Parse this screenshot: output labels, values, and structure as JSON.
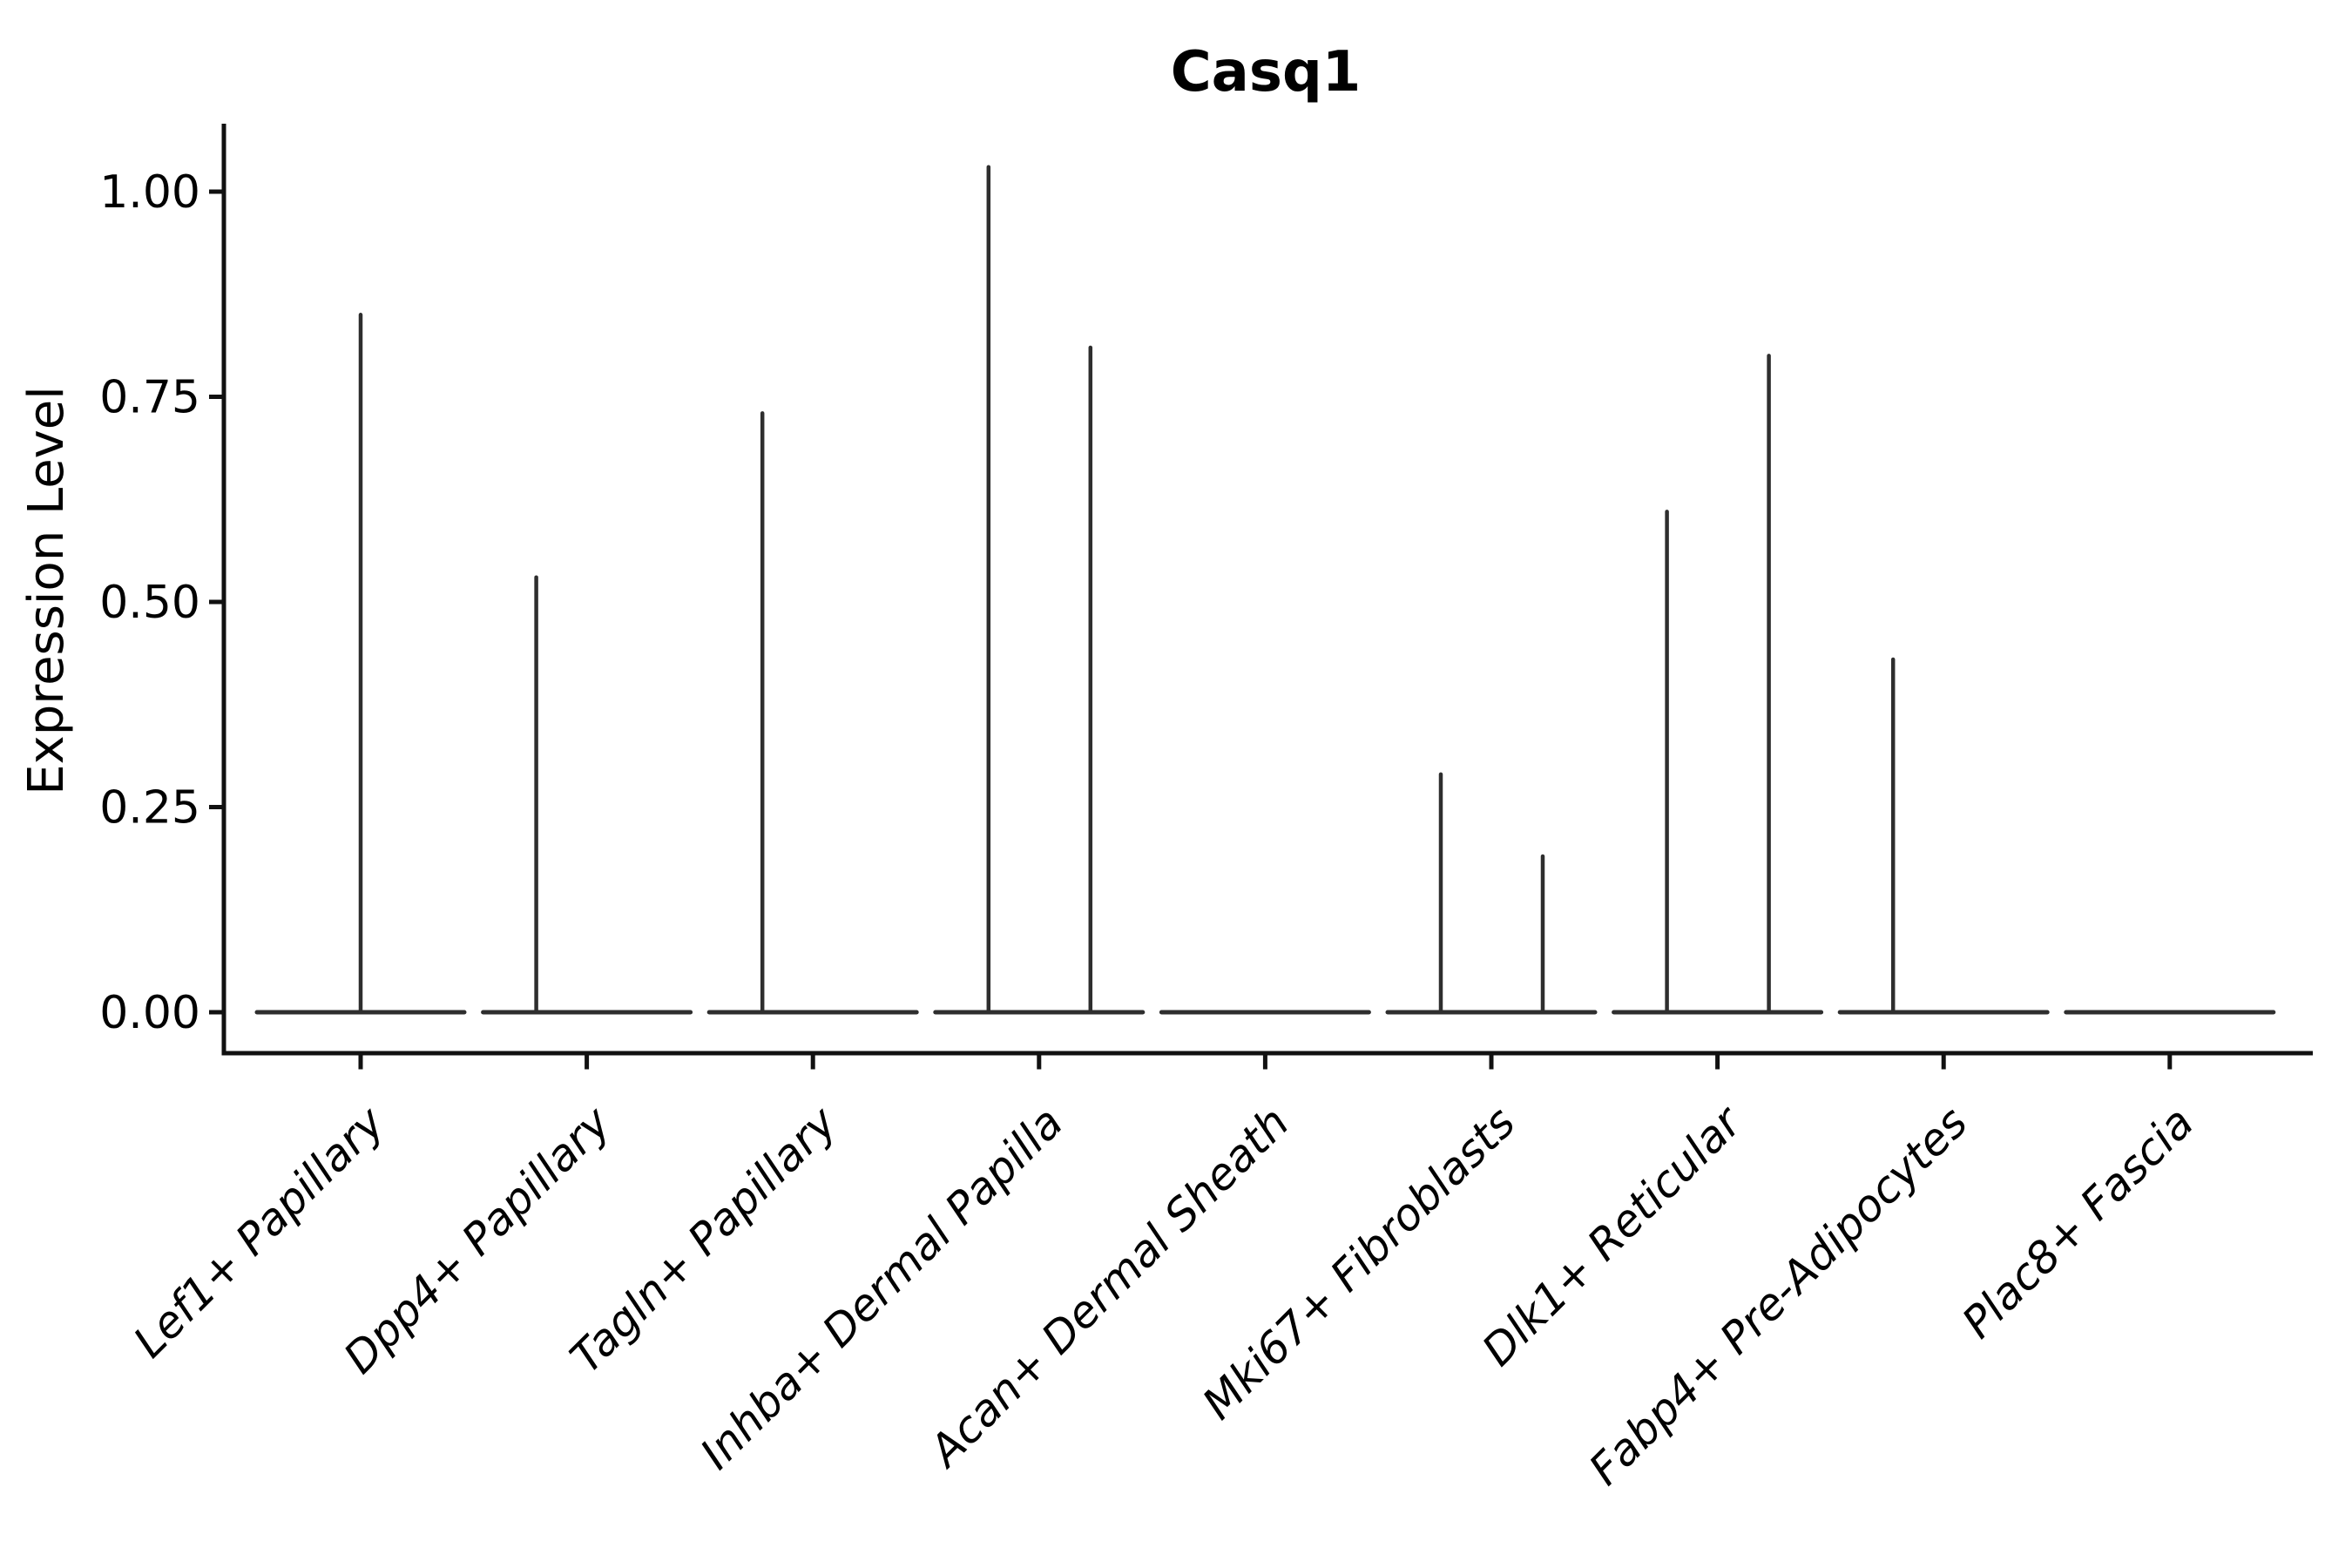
{
  "title": "Casq1",
  "y_axis": {
    "label": "Expression Level",
    "tick_labels": [
      "1.00",
      "0.75",
      "0.50",
      "0.25",
      "0.00"
    ],
    "tick_values": [
      1.0,
      0.75,
      0.5,
      0.25,
      0.0
    ]
  },
  "colors": {
    "violin_stroke": "#2e2e2e",
    "axis": "#111111",
    "text": "#000000",
    "background": "#ffffff"
  },
  "chart_data": {
    "type": "violin",
    "title": "Casq1",
    "xlabel": "",
    "ylabel": "Expression Level",
    "ylim": [
      0,
      1.08
    ],
    "yticks": [
      0.0,
      0.25,
      0.5,
      0.75,
      1.0
    ],
    "grid": false,
    "legend_position": "none",
    "categories": [
      "Lef1+ Papillary",
      "Dpp4+ Papillary",
      "Tagln+ Papillary",
      "Inhba+ Dermal Papilla",
      "Acan+ Dermal Sheath",
      "Mki67+ Fibroblasts",
      "Dlk1+ Reticular",
      "Fabp4+ Pre-Adipocytes",
      "Plac8+ Fascia"
    ],
    "violins": [
      {
        "category": "Lef1+ Papillary",
        "spikes": [
          {
            "group": "single",
            "max": 0.85
          }
        ]
      },
      {
        "category": "Dpp4+ Papillary",
        "spikes": [
          {
            "group": "left",
            "max": 0.53
          }
        ]
      },
      {
        "category": "Tagln+ Papillary",
        "spikes": [
          {
            "group": "left",
            "max": 0.73
          }
        ]
      },
      {
        "category": "Inhba+ Dermal Papilla",
        "spikes": [
          {
            "group": "left",
            "max": 1.03
          },
          {
            "group": "right",
            "max": 0.81
          }
        ]
      },
      {
        "category": "Acan+ Dermal Sheath",
        "spikes": []
      },
      {
        "category": "Mki67+ Fibroblasts",
        "spikes": [
          {
            "group": "left",
            "max": 0.29
          },
          {
            "group": "right",
            "max": 0.19
          }
        ]
      },
      {
        "category": "Dlk1+ Reticular",
        "spikes": [
          {
            "group": "left",
            "max": 0.61
          },
          {
            "group": "right",
            "max": 0.8
          }
        ]
      },
      {
        "category": "Fabp4+ Pre-Adipocytes",
        "spikes": [
          {
            "group": "left",
            "max": 0.43
          }
        ]
      },
      {
        "category": "Plac8+ Fascia",
        "spikes": []
      }
    ]
  }
}
